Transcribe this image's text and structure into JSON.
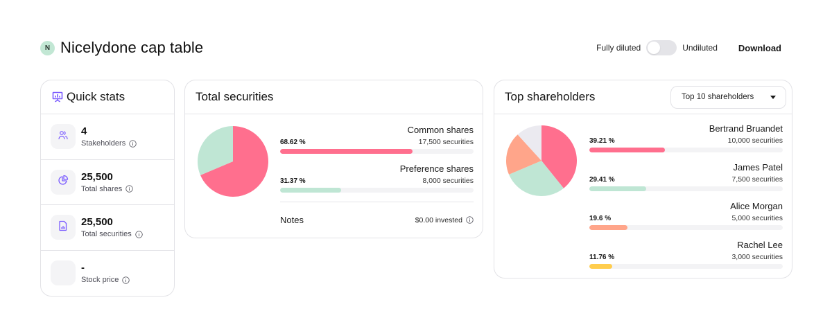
{
  "header": {
    "avatar_initial": "N",
    "title": "Nicelydone cap table",
    "toggle_left_label": "Fully diluted",
    "toggle_right_label": "Undiluted",
    "download_label": "Download"
  },
  "quick_stats": {
    "title": "Quick stats",
    "items": [
      {
        "value": "4",
        "label": "Stakeholders",
        "icon": "users-icon"
      },
      {
        "value": "25,500",
        "label": "Total shares",
        "icon": "pie-chart-icon"
      },
      {
        "value": "25,500",
        "label": "Total securities",
        "icon": "file-chart-icon"
      },
      {
        "value": "-",
        "label": "Stock price",
        "icon": "none"
      }
    ]
  },
  "total_securities": {
    "title": "Total securities",
    "items": [
      {
        "name": "Common shares",
        "percent": "68.62 %",
        "count": "17,500 securities",
        "pct_value": 68.62,
        "color": "#ff6f8e"
      },
      {
        "name": "Preference shares",
        "percent": "31.37 %",
        "count": "8,000 securities",
        "pct_value": 31.37,
        "color": "#bfe6d4"
      }
    ],
    "notes_label": "Notes",
    "notes_value": "$0.00 invested"
  },
  "top_shareholders": {
    "title": "Top shareholders",
    "select_value": "Top 10 shareholders",
    "items": [
      {
        "name": "Bertrand Bruandet",
        "percent": "39.21 %",
        "count": "10,000 securities",
        "pct_value": 39.21,
        "color": "#ff6f8e"
      },
      {
        "name": "James Patel",
        "percent": "29.41 %",
        "count": "7,500 securities",
        "pct_value": 29.41,
        "color": "#bfe6d4"
      },
      {
        "name": "Alice Morgan",
        "percent": "19.6 %",
        "count": "5,000 securities",
        "pct_value": 19.6,
        "color": "#ffa58a"
      },
      {
        "name": "Rachel Lee",
        "percent": "11.76 %",
        "count": "3,000 securities",
        "pct_value": 11.76,
        "color": "#ffcd4d"
      }
    ],
    "pie_other_color": "#ebeaf0"
  },
  "colors": {
    "accent_purple": "#7b5cff",
    "border": "#e2e2e6"
  }
}
